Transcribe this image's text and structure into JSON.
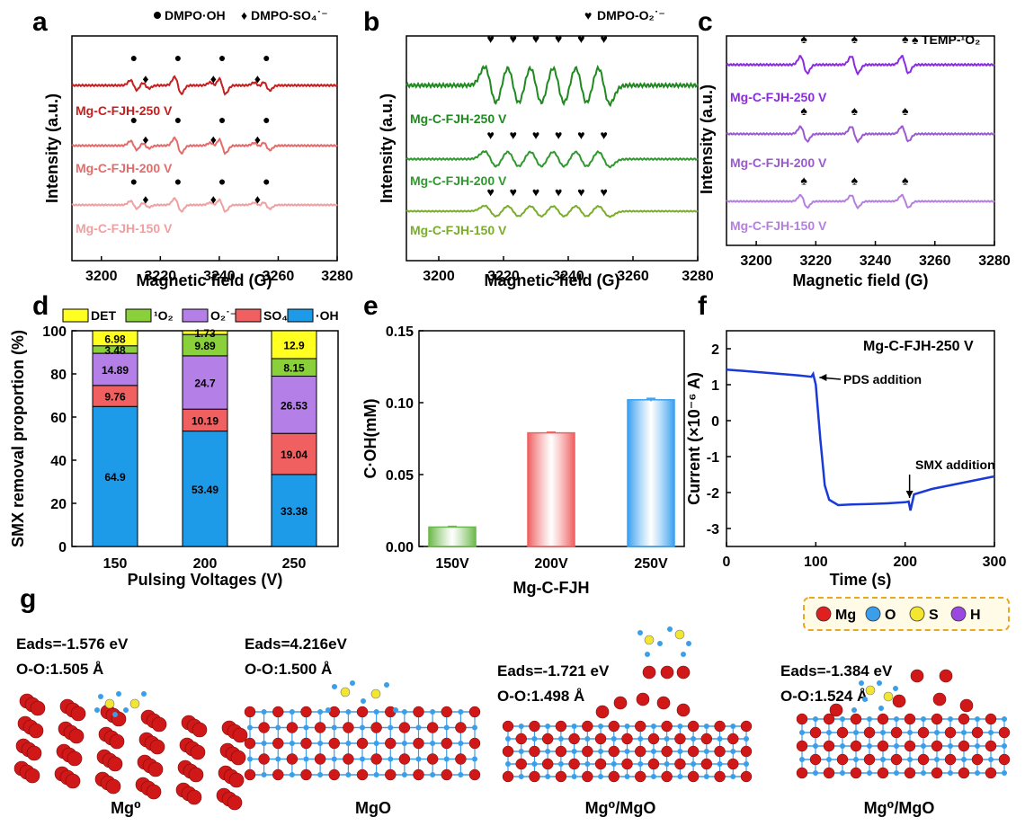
{
  "panels": {
    "a": {
      "letter": "a",
      "legend_oh": "DMPO·OH",
      "legend_so4": "DMPO-SO₄˙⁻",
      "xlabel": "Magnetic field (G)",
      "ylabel": "Intensity (a.u.)",
      "traces": [
        {
          "label": "Mg-C-FJH-250 V",
          "color": "#c81e1e"
        },
        {
          "label": "Mg-C-FJH-200 V",
          "color": "#e56b6b"
        },
        {
          "label": "Mg-C-FJH-150 V",
          "color": "#f0a0a0"
        }
      ]
    },
    "b": {
      "letter": "b",
      "legend": "DMPO-O₂˙⁻",
      "xlabel": "Magnetic field (G)",
      "ylabel": "Intensity (a.u.)",
      "traces": [
        {
          "label": "Mg-C-FJH-250 V",
          "color": "#1f8a1f"
        },
        {
          "label": "Mg-C-FJH-200 V",
          "color": "#2e9a2e"
        },
        {
          "label": "Mg-C-FJH-150 V",
          "color": "#7aad2a"
        }
      ]
    },
    "c": {
      "letter": "c",
      "legend": "TEMP-¹O₂",
      "xlabel": "Magnetic field (G)",
      "ylabel": "Intensity (a.u.)",
      "traces": [
        {
          "label": "Mg-C-FJH-250 V",
          "color": "#8a2be2"
        },
        {
          "label": "Mg-C-FJH-200 V",
          "color": "#9b59d0"
        },
        {
          "label": "Mg-C-FJH-150 V",
          "color": "#b57fe0"
        }
      ]
    },
    "d": {
      "letter": "d",
      "xlabel": "Pulsing Voltages (V)",
      "ylabel": "SMX removal proportion (%)"
    },
    "e": {
      "letter": "e",
      "xlabel": "Mg-C-FJH",
      "ylabel": "C·OH(mM)"
    },
    "f": {
      "letter": "f",
      "xlabel": "Time (s)",
      "ylabel": "Current (×10⁻⁶ A)",
      "label": "Mg-C-FJH-250 V",
      "ann_pds": "PDS addition",
      "ann_smx": "SMX addition"
    },
    "g": {
      "letter": "g",
      "legend": [
        {
          "label": "Mg",
          "color": "#e02020"
        },
        {
          "label": "O",
          "color": "#3a9ee8"
        },
        {
          "label": "S",
          "color": "#f2e630"
        },
        {
          "label": "H",
          "color": "#9a48e0"
        }
      ],
      "structures": [
        {
          "eads": "Eads=-1.576 eV",
          "oo": "O-O:1.505 Å",
          "name": "Mg⁰"
        },
        {
          "eads": "Eads=4.216eV",
          "oo": "O-O:1.500 Å",
          "name": "MgO"
        },
        {
          "eads": "Eads=-1.721 eV",
          "oo": "O-O:1.498 Å",
          "name": "Mg⁰/MgO"
        },
        {
          "eads": "Eads=-1.384 eV",
          "oo": "O-O:1.524 Å",
          "name": "Mg⁰/MgO"
        }
      ]
    }
  },
  "chart_data": [
    {
      "type": "line",
      "panel": "a",
      "title": "",
      "xlabel": "Magnetic field (G)",
      "ylabel": "Intensity (a.u.)",
      "xlim": [
        3190,
        3280
      ],
      "xticks": [
        3200,
        3220,
        3240,
        3260,
        3280
      ],
      "series": [
        {
          "name": "Mg-C-FJH-250 V"
        },
        {
          "name": "Mg-C-FJH-200 V"
        },
        {
          "name": "Mg-C-FJH-150 V"
        }
      ],
      "peaks_oh": [
        3211,
        3226,
        3241,
        3256
      ],
      "peaks_so4": [
        3215,
        3238,
        3253
      ]
    },
    {
      "type": "line",
      "panel": "b",
      "xlabel": "Magnetic field (G)",
      "ylabel": "Intensity (a.u.)",
      "xlim": [
        3190,
        3280
      ],
      "xticks": [
        3200,
        3220,
        3240,
        3260,
        3280
      ],
      "series": [
        {
          "name": "Mg-C-FJH-250 V"
        },
        {
          "name": "Mg-C-FJH-200 V"
        },
        {
          "name": "Mg-C-FJH-150 V"
        }
      ],
      "peaks": [
        3216,
        3223,
        3230,
        3237,
        3244,
        3251
      ]
    },
    {
      "type": "line",
      "panel": "c",
      "xlabel": "Magnetic field (G)",
      "ylabel": "Intensity (a.u.)",
      "xlim": [
        3190,
        3280
      ],
      "xticks": [
        3200,
        3220,
        3240,
        3260,
        3280
      ],
      "series": [
        {
          "name": "Mg-C-FJH-250 V"
        },
        {
          "name": "Mg-C-FJH-200 V"
        },
        {
          "name": "Mg-C-FJH-150 V"
        }
      ],
      "peaks": [
        3216,
        3233,
        3250
      ]
    },
    {
      "type": "bar",
      "panel": "d",
      "stacked": true,
      "categories": [
        "150",
        "200",
        "250"
      ],
      "xlabel": "Pulsing Voltages (V)",
      "ylabel": "SMX removal proportion (%)",
      "ylim": [
        0,
        100
      ],
      "yticks": [
        0,
        20,
        40,
        60,
        80,
        100
      ],
      "series": [
        {
          "name": "·OH",
          "color": "#1e9be8",
          "values": [
            64.9,
            53.49,
            33.38
          ]
        },
        {
          "name": "SO₄˙⁻",
          "color": "#f06060",
          "values": [
            9.76,
            10.19,
            19.04
          ]
        },
        {
          "name": "O₂˙⁻",
          "color": "#b57fe8",
          "values": [
            14.89,
            24.7,
            26.53
          ]
        },
        {
          "name": "¹O₂",
          "color": "#8ad03a",
          "values": [
            3.48,
            9.89,
            8.15
          ]
        },
        {
          "name": "DET",
          "color": "#ffff20",
          "values": [
            6.98,
            1.73,
            12.9
          ]
        }
      ]
    },
    {
      "type": "bar",
      "panel": "e",
      "categories": [
        "150V",
        "200V",
        "250V"
      ],
      "values": [
        0.0135,
        0.079,
        0.102
      ],
      "errors": [
        0.0005,
        0.0005,
        0.001
      ],
      "colors": [
        "#6cb84a",
        "#f06060",
        "#3aa0f0"
      ],
      "xlabel": "Mg-C-FJH",
      "ylabel": "C·OH(mM)",
      "ylim": [
        0,
        0.15
      ],
      "yticks": [
        0.0,
        0.05,
        0.1,
        0.15
      ]
    },
    {
      "type": "line",
      "panel": "f",
      "xlabel": "Time (s)",
      "ylabel": "Current (×10⁻⁶ A)",
      "xlim": [
        0,
        300
      ],
      "ylim": [
        -3.5,
        2.5
      ],
      "xticks": [
        0,
        100,
        200,
        300
      ],
      "yticks": [
        -3,
        -2,
        -1,
        0,
        1,
        2
      ],
      "series": [
        {
          "name": "Mg-C-FJH-250 V",
          "color": "#1a3ad8",
          "x": [
            0,
            20,
            40,
            60,
            80,
            95,
            97,
            100,
            105,
            110,
            115,
            125,
            140,
            160,
            180,
            200,
            204,
            206,
            210,
            230,
            260,
            300
          ],
          "y": [
            1.42,
            1.38,
            1.34,
            1.3,
            1.26,
            1.22,
            1.3,
            1.0,
            -0.5,
            -1.8,
            -2.2,
            -2.35,
            -2.33,
            -2.32,
            -2.3,
            -2.27,
            -2.25,
            -2.5,
            -2.05,
            -1.9,
            -1.75,
            -1.55
          ]
        }
      ],
      "annotations": [
        {
          "text": "PDS addition",
          "x": 100,
          "y": 1.2
        },
        {
          "text": "SMX addition",
          "x": 205,
          "y": -2.25
        }
      ]
    }
  ]
}
